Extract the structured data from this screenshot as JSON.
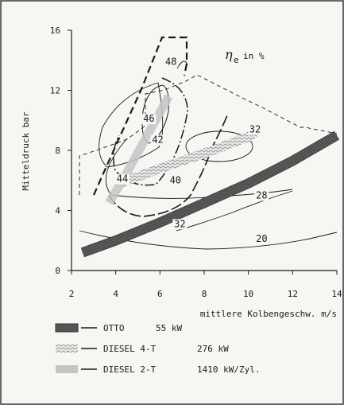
{
  "chart_data": {
    "type": "line",
    "title": "ηe in %",
    "title_parts": {
      "symbol": "η",
      "subscript": "e",
      "rest": "in %"
    },
    "xlabel": "mittlere Kolbengeschw. m/s",
    "ylabel": "Mitteldruck bar",
    "xlim": [
      2,
      14
    ],
    "ylim": [
      0,
      16
    ],
    "xticks": [
      2,
      4,
      6,
      8,
      10,
      12,
      14
    ],
    "yticks": [
      0,
      4,
      8,
      12,
      16
    ],
    "grid": false,
    "legend_position": "bottom-left",
    "series": [
      {
        "name": "OTTO",
        "power": "55 kW",
        "style": "dark-band",
        "color": "#555555",
        "points": [
          [
            2.5,
            1.2
          ],
          [
            4,
            2.0
          ],
          [
            6,
            3.2
          ],
          [
            8,
            4.5
          ],
          [
            10,
            5.8
          ],
          [
            12,
            7.3
          ],
          [
            14,
            9.0
          ]
        ]
      },
      {
        "name": "DIESEL 4-T",
        "power": "276 kW",
        "style": "wavy-band",
        "color": "#9a9a9a",
        "points": [
          [
            4.2,
            5.8
          ],
          [
            6,
            6.8
          ],
          [
            8,
            7.8
          ],
          [
            10,
            8.9
          ],
          [
            10.3,
            9.2
          ]
        ]
      },
      {
        "name": "DIESEL 2-T",
        "power": "1410 kW/Zyl.",
        "style": "light-band",
        "color": "#c4c4c4",
        "points": [
          [
            3.7,
            4.5
          ],
          [
            4.5,
            6.5
          ],
          [
            5.5,
            9.2
          ],
          [
            6.4,
            11.6
          ]
        ]
      }
    ],
    "contour_labels": [
      {
        "text": "48",
        "x": 6.5,
        "y": 13.7
      },
      {
        "text": "46",
        "x": 5.5,
        "y": 9.9
      },
      {
        "text": "42",
        "x": 5.9,
        "y": 8.5
      },
      {
        "text": "44",
        "x": 4.3,
        "y": 5.9
      },
      {
        "text": "40",
        "x": 6.7,
        "y": 5.8
      },
      {
        "text": "32",
        "x": 10.3,
        "y": 9.2
      },
      {
        "text": "28",
        "x": 10.6,
        "y": 4.8
      },
      {
        "text": "32",
        "x": 6.9,
        "y": 2.9
      },
      {
        "text": "20",
        "x": 10.6,
        "y": 1.9
      }
    ]
  }
}
